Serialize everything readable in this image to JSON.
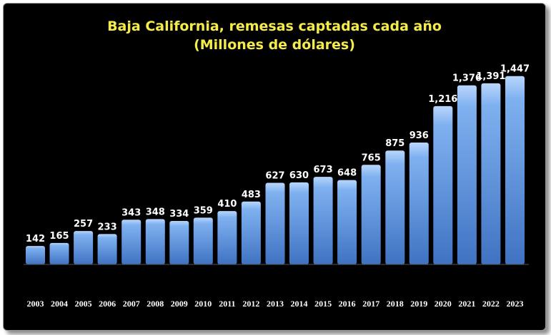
{
  "chart_data": {
    "type": "bar",
    "title": "Baja California, remesas captadas cada año",
    "subtitle": "(Millones de dólares)",
    "categories": [
      "2003",
      "2004",
      "2005",
      "2006",
      "2007",
      "2008",
      "2009",
      "2010",
      "2011",
      "2012",
      "2013",
      "2014",
      "2015",
      "2016",
      "2017",
      "2018",
      "2019",
      "2020",
      "2021",
      "2022",
      "2023"
    ],
    "values": [
      142,
      165,
      257,
      233,
      343,
      348,
      334,
      359,
      410,
      483,
      627,
      630,
      673,
      648,
      765,
      875,
      936,
      1216,
      1376,
      1391,
      1447
    ],
    "value_labels": [
      "142",
      "165",
      "257",
      "233",
      "343",
      "348",
      "334",
      "359",
      "410",
      "483",
      "627",
      "630",
      "673",
      "648",
      "765",
      "875",
      "936",
      "1,216",
      "1,376",
      "1,391",
      "1,447"
    ],
    "ylim": [
      0,
      1500
    ],
    "grid": false,
    "legend": "none",
    "colors": {
      "background": "#000000",
      "bar_top": "#b9d6fb",
      "bar_mid": "#6fa3e8",
      "bar_bottom": "#3f73c2",
      "title": "#f5ec4a",
      "labels": "#ffffff"
    }
  }
}
